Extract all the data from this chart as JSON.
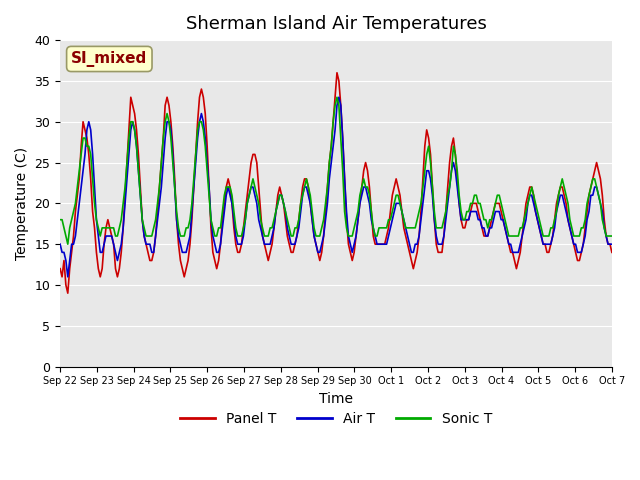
{
  "title": "Sherman Island Air Temperatures",
  "xlabel": "Time",
  "ylabel": "Temperature (C)",
  "ylim": [
    0,
    40
  ],
  "yticks": [
    0,
    5,
    10,
    15,
    20,
    25,
    30,
    35,
    40
  ],
  "background_color": "#e8e8e8",
  "annotation_text": "SI_mixed",
  "annotation_color": "#8b0000",
  "annotation_bg": "#ffffcc",
  "legend_labels": [
    "Panel T",
    "Air T",
    "Sonic T"
  ],
  "line_colors": [
    "#cc0000",
    "#0000cc",
    "#00aa00"
  ],
  "x_tick_labels": [
    "Sep 22",
    "Sep 23",
    "Sep 24",
    "Sep 25",
    "Sep 26",
    "Sep 27",
    "Sep 28",
    "Sep 29",
    "Sep 30",
    "Oct 1",
    "Oct 2",
    "Oct 3",
    "Oct 4",
    "Oct 5",
    "Oct 6",
    "Oct 7"
  ],
  "panel_t": [
    12,
    11,
    13,
    10,
    9,
    12,
    14,
    16,
    19,
    21,
    23,
    27,
    30,
    29,
    28,
    26,
    23,
    19,
    17,
    14,
    12,
    11,
    12,
    15,
    17,
    18,
    17,
    16,
    15,
    12,
    11,
    12,
    14,
    17,
    21,
    25,
    29,
    33,
    32,
    31,
    29,
    26,
    22,
    18,
    16,
    15,
    14,
    13,
    13,
    14,
    16,
    19,
    22,
    25,
    28,
    32,
    33,
    32,
    30,
    27,
    23,
    18,
    15,
    13,
    12,
    11,
    12,
    13,
    15,
    18,
    22,
    26,
    30,
    33,
    34,
    33,
    31,
    27,
    22,
    17,
    14,
    13,
    12,
    13,
    15,
    18,
    20,
    22,
    23,
    22,
    20,
    17,
    15,
    14,
    14,
    15,
    17,
    19,
    21,
    23,
    25,
    26,
    26,
    25,
    22,
    19,
    16,
    15,
    14,
    13,
    14,
    15,
    17,
    19,
    21,
    22,
    21,
    20,
    18,
    16,
    15,
    14,
    14,
    15,
    16,
    18,
    20,
    22,
    23,
    23,
    22,
    20,
    18,
    16,
    15,
    14,
    13,
    14,
    16,
    19,
    22,
    25,
    27,
    30,
    33,
    36,
    35,
    32,
    28,
    23,
    18,
    15,
    14,
    13,
    14,
    16,
    18,
    20,
    22,
    24,
    25,
    24,
    22,
    19,
    16,
    15,
    15,
    15,
    15,
    15,
    15,
    16,
    17,
    19,
    21,
    22,
    23,
    22,
    21,
    19,
    17,
    16,
    15,
    14,
    13,
    12,
    13,
    14,
    16,
    19,
    23,
    27,
    29,
    28,
    26,
    22,
    18,
    15,
    14,
    14,
    14,
    16,
    19,
    22,
    25,
    27,
    28,
    26,
    23,
    20,
    18,
    17,
    17,
    18,
    18,
    19,
    20,
    20,
    20,
    19,
    18,
    17,
    16,
    16,
    16,
    17,
    18,
    19,
    20,
    20,
    20,
    19,
    18,
    17,
    16,
    15,
    14,
    14,
    13,
    12,
    13,
    14,
    16,
    18,
    20,
    21,
    22,
    22,
    21,
    19,
    18,
    17,
    16,
    15,
    15,
    14,
    14,
    15,
    16,
    18,
    20,
    21,
    22,
    22,
    21,
    20,
    18,
    17,
    16,
    15,
    14,
    13,
    13,
    14,
    15,
    17,
    19,
    21,
    22,
    23,
    24,
    25,
    24,
    23,
    21,
    18,
    16,
    15,
    15,
    14
  ],
  "air_t": [
    15,
    14,
    14,
    13,
    11,
    13,
    15,
    15,
    16,
    18,
    20,
    22,
    24,
    26,
    29,
    30,
    29,
    26,
    22,
    18,
    16,
    14,
    14,
    15,
    16,
    16,
    16,
    16,
    15,
    14,
    13,
    14,
    15,
    17,
    20,
    23,
    26,
    29,
    30,
    29,
    27,
    24,
    21,
    18,
    16,
    15,
    15,
    15,
    14,
    14,
    16,
    18,
    20,
    22,
    25,
    28,
    30,
    30,
    29,
    26,
    22,
    18,
    16,
    15,
    14,
    14,
    14,
    15,
    16,
    19,
    22,
    25,
    28,
    30,
    31,
    30,
    28,
    25,
    22,
    18,
    16,
    15,
    14,
    14,
    15,
    17,
    19,
    21,
    22,
    21,
    20,
    18,
    16,
    15,
    15,
    15,
    16,
    18,
    20,
    21,
    22,
    22,
    21,
    20,
    18,
    17,
    16,
    15,
    15,
    15,
    15,
    16,
    17,
    19,
    20,
    21,
    21,
    20,
    19,
    17,
    16,
    15,
    15,
    15,
    16,
    17,
    19,
    21,
    22,
    22,
    21,
    20,
    18,
    16,
    15,
    14,
    14,
    15,
    16,
    18,
    20,
    23,
    25,
    27,
    29,
    32,
    33,
    32,
    28,
    23,
    19,
    16,
    15,
    14,
    15,
    16,
    18,
    20,
    21,
    22,
    22,
    21,
    20,
    18,
    17,
    16,
    15,
    15,
    15,
    15,
    15,
    15,
    16,
    17,
    18,
    19,
    20,
    20,
    20,
    19,
    18,
    17,
    16,
    15,
    14,
    14,
    15,
    15,
    16,
    18,
    20,
    22,
    24,
    24,
    23,
    21,
    18,
    16,
    15,
    15,
    15,
    16,
    18,
    20,
    22,
    24,
    25,
    24,
    22,
    20,
    18,
    18,
    18,
    18,
    18,
    19,
    19,
    19,
    19,
    18,
    18,
    17,
    17,
    16,
    16,
    17,
    17,
    18,
    19,
    19,
    19,
    18,
    18,
    17,
    16,
    15,
    15,
    14,
    14,
    14,
    14,
    15,
    16,
    17,
    18,
    20,
    21,
    21,
    20,
    19,
    18,
    17,
    16,
    15,
    15,
    15,
    15,
    15,
    16,
    17,
    19,
    20,
    21,
    21,
    20,
    19,
    18,
    17,
    16,
    15,
    15,
    14,
    14,
    14,
    15,
    16,
    18,
    19,
    21,
    21,
    22,
    22,
    21,
    20,
    19,
    17,
    16,
    15,
    15,
    15
  ],
  "sonic_t": [
    18,
    18,
    17,
    16,
    15,
    17,
    18,
    19,
    20,
    22,
    24,
    26,
    28,
    28,
    27,
    27,
    26,
    23,
    20,
    18,
    17,
    16,
    17,
    17,
    17,
    17,
    17,
    17,
    17,
    16,
    16,
    17,
    18,
    20,
    22,
    25,
    28,
    30,
    30,
    29,
    27,
    24,
    21,
    18,
    17,
    16,
    16,
    16,
    16,
    17,
    18,
    20,
    22,
    25,
    28,
    30,
    31,
    30,
    28,
    25,
    22,
    19,
    17,
    16,
    16,
    16,
    17,
    17,
    18,
    20,
    23,
    26,
    29,
    30,
    30,
    29,
    27,
    24,
    21,
    18,
    17,
    16,
    16,
    17,
    17,
    19,
    21,
    22,
    22,
    22,
    21,
    19,
    17,
    16,
    16,
    16,
    17,
    18,
    20,
    21,
    22,
    23,
    22,
    21,
    20,
    18,
    17,
    16,
    16,
    16,
    17,
    17,
    18,
    19,
    20,
    21,
    21,
    20,
    19,
    18,
    17,
    16,
    16,
    17,
    17,
    18,
    20,
    21,
    22,
    23,
    22,
    21,
    19,
    17,
    16,
    16,
    16,
    17,
    18,
    20,
    22,
    25,
    27,
    30,
    32,
    33,
    32,
    28,
    24,
    19,
    17,
    16,
    16,
    16,
    17,
    18,
    19,
    21,
    22,
    23,
    22,
    22,
    21,
    19,
    17,
    16,
    16,
    17,
    17,
    17,
    17,
    17,
    18,
    18,
    19,
    20,
    21,
    21,
    20,
    19,
    18,
    17,
    17,
    17,
    17,
    17,
    17,
    18,
    19,
    20,
    22,
    24,
    26,
    27,
    25,
    22,
    19,
    17,
    17,
    17,
    17,
    18,
    19,
    21,
    22,
    24,
    27,
    26,
    24,
    21,
    19,
    18,
    18,
    19,
    19,
    20,
    20,
    21,
    21,
    20,
    20,
    19,
    18,
    18,
    17,
    18,
    18,
    19,
    20,
    21,
    21,
    20,
    19,
    18,
    17,
    16,
    16,
    16,
    16,
    16,
    16,
    17,
    17,
    18,
    19,
    20,
    21,
    22,
    21,
    20,
    19,
    18,
    17,
    16,
    16,
    16,
    16,
    17,
    17,
    18,
    19,
    21,
    22,
    23,
    22,
    21,
    20,
    18,
    17,
    16,
    16,
    16,
    16,
    17,
    17,
    18,
    20,
    21,
    22,
    23,
    23,
    22,
    21,
    20,
    18,
    17,
    16,
    16,
    16,
    16
  ]
}
